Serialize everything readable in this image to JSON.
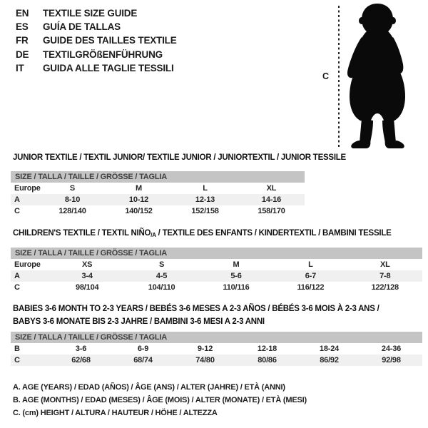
{
  "languages": [
    {
      "code": "EN",
      "title": "TEXTILE SIZE GUIDE"
    },
    {
      "code": "ES",
      "title": "GUÍA DE TALLAS"
    },
    {
      "code": "FR",
      "title": "GUIDE DES TAILLES TEXTILE"
    },
    {
      "code": "DE",
      "title": "TEXTILGRÖßENFÜHRUNG"
    },
    {
      "code": "IT",
      "title": "GUIDA ALLE TAGLIE TESSILI"
    }
  ],
  "figure": {
    "height_label": "C",
    "silhouette": "standing-toddler"
  },
  "colors": {
    "header_bar": "#c4c4c4",
    "header_bar_text": "#3e3e3e",
    "row_stripe": "#f0f0f0",
    "text": "#1c1c1c"
  },
  "tables": [
    {
      "title": "JUNIOR TEXTILE / TEXTIL JUNIOR/ TEXTILE JUNIOR / JUNIORTEXTIL / JUNIOR TESSILE",
      "size_header": "SIZE / TALLA / TAILLE / GRÖSSE / TAGLIA",
      "rows": [
        {
          "label": "Europe",
          "values": [
            "S",
            "M",
            "L",
            "XL"
          ]
        },
        {
          "label": "A",
          "values": [
            "8-10",
            "10-12",
            "12-13",
            "14-16"
          ]
        },
        {
          "label": "C",
          "values": [
            "128/140",
            "140/152",
            "152/158",
            "158/170"
          ]
        }
      ]
    },
    {
      "title_pre": "CHILDREN'S TEXTILE / TEXTIL NIÑO",
      "title_sub": "/A",
      "title_post": " / TEXTILE DES ENFANTS / KINDERTEXTIL / BAMBINI TESSILE",
      "size_header": "SIZE / TALLA / TAILLE / GRÖSSE / TAGLIA",
      "rows": [
        {
          "label": "Europe",
          "values": [
            "XS",
            "S",
            "M",
            "L",
            "XL"
          ]
        },
        {
          "label": "A",
          "values": [
            "3-4",
            "4-5",
            "5-6",
            "6-7",
            "7-8"
          ]
        },
        {
          "label": "C",
          "values": [
            "98/104",
            "104/110",
            "110/116",
            "116/122",
            "122/128"
          ]
        }
      ]
    },
    {
      "title": "BABIES 3-6 MONTH TO 2-3 YEARS / BEBÉS 3-6 MESES A 2-3 AÑOS / BÉBÉS 3-6 MOIS À 2-3 ANS /",
      "title_line2": "BABYS 3-6 MONATE BIS 2-3 JAHRE / BAMBINI 3-6 MESI A 2-3 ANNI",
      "size_header": "SIZE / TALLA / TAILLE / GRÖSSE / TAGLIA",
      "rows": [
        {
          "label": "B",
          "values": [
            "3-6",
            "6-9",
            "9-12",
            "12-18",
            "18-24",
            "24-36"
          ]
        },
        {
          "label": "C",
          "values": [
            "62/68",
            "68/74",
            "74/80",
            "80/86",
            "86/92",
            "92/98"
          ]
        }
      ]
    }
  ],
  "footnotes": [
    "A. AGE (YEARS) / EDAD (AÑOS) / ÂGE (ANS) / ALTER (JAHRE) / ETÀ (ANNI)",
    "B. AGE (MONTHS) / EDAD (MESES) / ÂGE (MOIS) / ALTER (MONATE) / ETÀ (MESI)",
    "C. (cm) HEIGHT / ALTURA / HAUTEUR / HÖHE / ALTEZZA"
  ]
}
